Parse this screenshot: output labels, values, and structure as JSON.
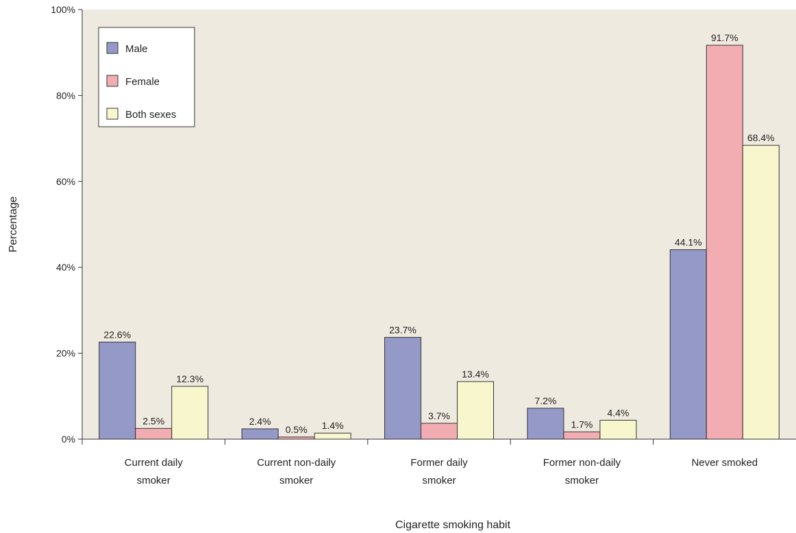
{
  "chart_data": {
    "type": "bar",
    "xlabel": "Cigarette smoking habit",
    "ylabel": "Percentage",
    "ylim": [
      0,
      100
    ],
    "yticks": [
      0,
      20,
      40,
      60,
      80,
      100
    ],
    "ytick_labels": [
      "0%",
      "20%",
      "40%",
      "60%",
      "80%",
      "100%"
    ],
    "categories": [
      [
        "Current daily",
        "smoker"
      ],
      [
        "Current non-daily",
        "smoker"
      ],
      [
        "Former daily",
        "smoker"
      ],
      [
        "Former non-daily",
        "smoker"
      ],
      [
        "Never smoked"
      ]
    ],
    "series": [
      {
        "name": "Male",
        "color": "#9599c8",
        "values": [
          22.6,
          2.4,
          23.7,
          7.2,
          44.1
        ],
        "labels": [
          "22.6%",
          "2.4%",
          "23.7%",
          "7.2%",
          "44.1%"
        ]
      },
      {
        "name": "Female",
        "color": "#f2adb3",
        "values": [
          2.5,
          0.5,
          3.7,
          1.7,
          91.7
        ],
        "labels": [
          "2.5%",
          "0.5%",
          "3.7%",
          "1.7%",
          "91.7%"
        ]
      },
      {
        "name": "Both sexes",
        "color": "#f8f6cc",
        "values": [
          12.3,
          1.4,
          13.4,
          4.4,
          68.4
        ],
        "labels": [
          "12.3%",
          "1.4%",
          "13.4%",
          "4.4%",
          "68.4%"
        ]
      }
    ],
    "grid": false,
    "legend_position": "top-left",
    "plot_background": "#efeae0"
  }
}
